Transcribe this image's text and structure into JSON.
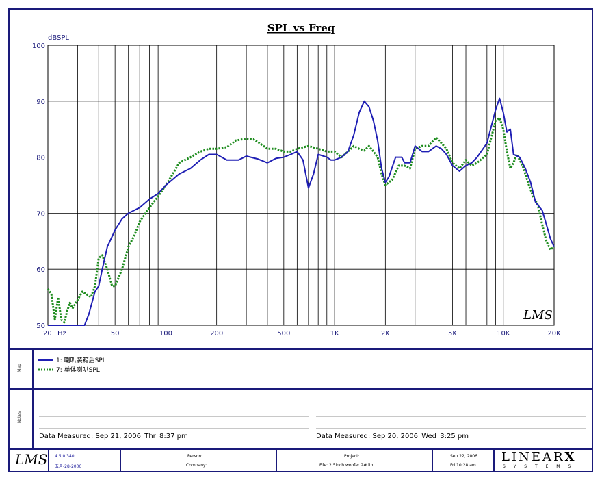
{
  "chart_data": {
    "type": "line",
    "title": "SPL vs Freq",
    "ylabel": "dBSPL",
    "xscale": "log",
    "xlim": [
      20,
      20000
    ],
    "ylim": [
      50,
      100
    ],
    "yticks": [
      "100",
      "90",
      "80",
      "70",
      "60",
      "50"
    ],
    "xtick_labels": [
      {
        "v": 20,
        "t": "20"
      },
      {
        "v": 50,
        "t": "50"
      },
      {
        "v": 100,
        "t": "100"
      },
      {
        "v": 200,
        "t": "200"
      },
      {
        "v": 500,
        "t": "500"
      },
      {
        "v": 1000,
        "t": "1K"
      },
      {
        "v": 2000,
        "t": "2K"
      },
      {
        "v": 5000,
        "t": "5K"
      },
      {
        "v": 10000,
        "t": "10K"
      },
      {
        "v": 20000,
        "t": "20K"
      }
    ],
    "xunit": "Hz",
    "grid": true,
    "watermark": "LMS",
    "series": [
      {
        "name": "1: 喇叭装箱后SPL",
        "color": "#1f1fb4",
        "style": "solid",
        "points": [
          [
            20,
            50
          ],
          [
            25,
            50
          ],
          [
            30,
            50
          ],
          [
            33,
            50
          ],
          [
            35,
            52
          ],
          [
            38,
            56
          ],
          [
            40,
            57
          ],
          [
            42,
            60
          ],
          [
            45,
            64
          ],
          [
            50,
            67
          ],
          [
            55,
            69
          ],
          [
            60,
            70
          ],
          [
            70,
            71
          ],
          [
            80,
            72.5
          ],
          [
            90,
            73.5
          ],
          [
            100,
            75
          ],
          [
            120,
            77
          ],
          [
            140,
            78
          ],
          [
            160,
            79.5
          ],
          [
            180,
            80.5
          ],
          [
            200,
            80.5
          ],
          [
            230,
            79.5
          ],
          [
            270,
            79.5
          ],
          [
            300,
            80.2
          ],
          [
            350,
            79.7
          ],
          [
            400,
            79
          ],
          [
            450,
            79.8
          ],
          [
            500,
            80
          ],
          [
            550,
            80.5
          ],
          [
            600,
            81
          ],
          [
            650,
            79.5
          ],
          [
            700,
            74.5
          ],
          [
            750,
            77
          ],
          [
            800,
            80.5
          ],
          [
            900,
            80
          ],
          [
            950,
            79.5
          ],
          [
            1000,
            79.5
          ],
          [
            1100,
            80
          ],
          [
            1200,
            81
          ],
          [
            1300,
            84
          ],
          [
            1400,
            88
          ],
          [
            1500,
            90
          ],
          [
            1600,
            89
          ],
          [
            1700,
            86.5
          ],
          [
            1800,
            83
          ],
          [
            1900,
            78
          ],
          [
            2000,
            75.5
          ],
          [
            2100,
            76.5
          ],
          [
            2300,
            80
          ],
          [
            2500,
            80
          ],
          [
            2600,
            79
          ],
          [
            2800,
            79
          ],
          [
            3000,
            82
          ],
          [
            3300,
            81
          ],
          [
            3600,
            81
          ],
          [
            4000,
            82
          ],
          [
            4300,
            81.5
          ],
          [
            4600,
            80.5
          ],
          [
            5000,
            78.5
          ],
          [
            5500,
            77.5
          ],
          [
            6000,
            78.5
          ],
          [
            6500,
            79
          ],
          [
            7000,
            80
          ],
          [
            8000,
            82.5
          ],
          [
            9000,
            88.5
          ],
          [
            9500,
            90.5
          ],
          [
            10000,
            88
          ],
          [
            10500,
            84.5
          ],
          [
            11000,
            85
          ],
          [
            11500,
            80.5
          ],
          [
            12500,
            80
          ],
          [
            13500,
            78
          ],
          [
            14500,
            75.5
          ],
          [
            15500,
            72
          ],
          [
            17000,
            70.5
          ],
          [
            18000,
            68
          ],
          [
            19000,
            65.5
          ],
          [
            20000,
            64
          ]
        ]
      },
      {
        "name": "7: 单体喇叭SPL",
        "color": "#1e8c1e",
        "style": "dotted",
        "points": [
          [
            20,
            56.5
          ],
          [
            21,
            55.5
          ],
          [
            22,
            51
          ],
          [
            23,
            55
          ],
          [
            24,
            51
          ],
          [
            25,
            50.5
          ],
          [
            26,
            52.5
          ],
          [
            27,
            54
          ],
          [
            28,
            53
          ],
          [
            30,
            54.5
          ],
          [
            32,
            56
          ],
          [
            34,
            55.5
          ],
          [
            36,
            55
          ],
          [
            38,
            57
          ],
          [
            40,
            62
          ],
          [
            42,
            62.5
          ],
          [
            45,
            60
          ],
          [
            48,
            57
          ],
          [
            50,
            57
          ],
          [
            55,
            60
          ],
          [
            60,
            64
          ],
          [
            65,
            66
          ],
          [
            70,
            68.5
          ],
          [
            80,
            71
          ],
          [
            90,
            73
          ],
          [
            100,
            75
          ],
          [
            110,
            77
          ],
          [
            120,
            79
          ],
          [
            140,
            80
          ],
          [
            160,
            81
          ],
          [
            180,
            81.5
          ],
          [
            200,
            81.5
          ],
          [
            230,
            81.8
          ],
          [
            260,
            83
          ],
          [
            300,
            83.3
          ],
          [
            330,
            83.2
          ],
          [
            360,
            82.5
          ],
          [
            400,
            81.5
          ],
          [
            450,
            81.5
          ],
          [
            500,
            81
          ],
          [
            550,
            81
          ],
          [
            600,
            81.5
          ],
          [
            700,
            82
          ],
          [
            800,
            81.5
          ],
          [
            900,
            81
          ],
          [
            1000,
            81
          ],
          [
            1100,
            80
          ],
          [
            1200,
            81
          ],
          [
            1300,
            82
          ],
          [
            1400,
            81.5
          ],
          [
            1500,
            81.2
          ],
          [
            1600,
            82
          ],
          [
            1700,
            81
          ],
          [
            1800,
            80
          ],
          [
            1900,
            77
          ],
          [
            2000,
            75
          ],
          [
            2200,
            76
          ],
          [
            2400,
            78.5
          ],
          [
            2600,
            78.5
          ],
          [
            2800,
            78
          ],
          [
            3000,
            81.5
          ],
          [
            3300,
            82
          ],
          [
            3600,
            82
          ],
          [
            4000,
            83.5
          ],
          [
            4300,
            82.5
          ],
          [
            4600,
            81.5
          ],
          [
            5000,
            79
          ],
          [
            5500,
            78
          ],
          [
            6000,
            79.5
          ],
          [
            6500,
            78.5
          ],
          [
            7000,
            79
          ],
          [
            8000,
            80.5
          ],
          [
            9000,
            86.5
          ],
          [
            9500,
            87
          ],
          [
            10000,
            85
          ],
          [
            10500,
            81
          ],
          [
            11000,
            78
          ],
          [
            11500,
            79
          ],
          [
            12000,
            80.5
          ],
          [
            13000,
            78.5
          ],
          [
            14000,
            75.5
          ],
          [
            15000,
            73
          ],
          [
            16000,
            71.5
          ],
          [
            17000,
            68
          ],
          [
            18000,
            65
          ],
          [
            19000,
            63.5
          ],
          [
            20000,
            64
          ]
        ]
      }
    ]
  },
  "notes": {
    "left": {
      "label": "Data Measured:",
      "date": "Sep 21, 2006",
      "day": "Thr",
      "time": "8:37 pm"
    },
    "right": {
      "label": "Data Measured:",
      "date": "Sep 20, 2006",
      "day": "Wed",
      "time": "3:25 pm"
    }
  },
  "side_labels": {
    "map": "Map",
    "notes": "Notes"
  },
  "footer": {
    "logo": "LMS",
    "version": "4.5.0.340",
    "version_date": "五月-28-2006",
    "person_label": "Person:",
    "company_label": "Company:",
    "project_label": "Project:",
    "file_label": "File: 2.5inch woofer 2#.lib",
    "date": "Sep 22, 2006",
    "time": "Fri 10:28 am",
    "brand": "LINEAR",
    "brand_x": "X",
    "brand_sub": "S Y S T E M S"
  },
  "colors": {
    "frame": "#1a1a7a",
    "axis_text": "#1a1a7a"
  }
}
